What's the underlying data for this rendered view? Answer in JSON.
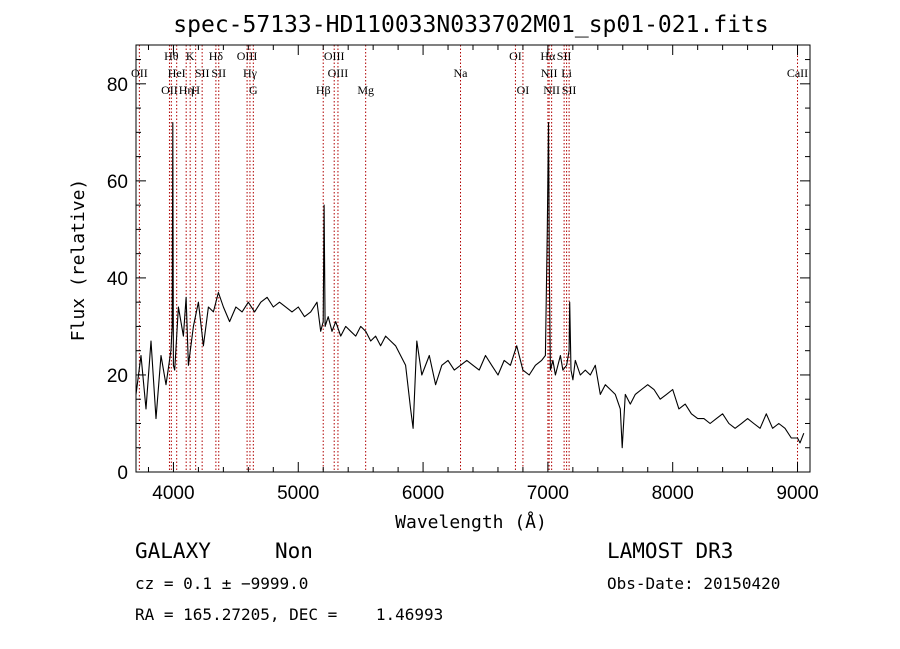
{
  "chart_data": {
    "type": "line",
    "title": "spec-57133-HD110033N033702M01_sp01-021.fits",
    "xlabel": "Wavelength (Å)",
    "ylabel": "Flux (relative)",
    "xlim": [
      3700,
      9100
    ],
    "ylim": [
      0,
      88
    ],
    "xticks": [
      4000,
      5000,
      6000,
      7000,
      8000,
      9000
    ],
    "yticks": [
      0,
      20,
      40,
      60,
      80
    ],
    "grid": false,
    "series": [
      {
        "x": [
          3700,
          3740,
          3780,
          3820,
          3860,
          3900,
          3940,
          3980,
          3990,
          3995,
          4000,
          4010,
          4040,
          4080,
          4101,
          4120,
          4160,
          4200,
          4240,
          4280,
          4320,
          4360,
          4400,
          4450,
          4500,
          4550,
          4600,
          4650,
          4700,
          4750,
          4800,
          4850,
          4900,
          4950,
          5000,
          5050,
          5100,
          5150,
          5180,
          5200,
          5207,
          5215,
          5240,
          5270,
          5300,
          5340,
          5380,
          5420,
          5460,
          5500,
          5540,
          5580,
          5620,
          5660,
          5700,
          5740,
          5780,
          5820,
          5860,
          5900,
          5920,
          5950,
          5990,
          6050,
          6100,
          6150,
          6200,
          6250,
          6300,
          6350,
          6400,
          6450,
          6500,
          6550,
          6600,
          6650,
          6700,
          6750,
          6800,
          6850,
          6900,
          6950,
          6980,
          6995,
          7005,
          7012,
          7020,
          7040,
          7060,
          7080,
          7100,
          7120,
          7150,
          7170,
          7175,
          7185,
          7200,
          7220,
          7260,
          7300,
          7340,
          7380,
          7420,
          7460,
          7500,
          7540,
          7580,
          7595,
          7620,
          7660,
          7700,
          7750,
          7800,
          7850,
          7900,
          7950,
          8000,
          8050,
          8100,
          8150,
          8200,
          8250,
          8300,
          8350,
          8400,
          8450,
          8500,
          8550,
          8600,
          8650,
          8700,
          8750,
          8800,
          8850,
          8900,
          8950,
          9000,
          9020,
          9050
        ],
        "y": [
          16,
          24,
          13,
          27,
          11,
          24,
          18,
          25,
          30,
          72,
          22,
          21,
          34,
          28,
          36,
          22,
          30,
          35,
          26,
          34,
          33,
          37,
          34,
          31,
          34,
          33,
          35,
          33,
          35,
          36,
          34,
          35,
          34,
          33,
          34,
          32,
          33,
          35,
          29,
          31,
          55,
          30,
          32,
          29,
          31,
          28,
          30,
          29,
          28,
          30,
          29,
          27,
          28,
          26,
          28,
          27,
          26,
          24,
          22,
          13,
          9,
          27,
          20,
          24,
          18,
          22,
          23,
          21,
          22,
          23,
          22,
          21,
          24,
          22,
          20,
          23,
          22,
          26,
          21,
          20,
          22,
          23,
          24,
          50,
          72,
          40,
          21,
          23,
          20,
          22,
          24,
          21,
          22,
          25,
          35,
          21,
          19,
          23,
          20,
          21,
          20,
          22,
          16,
          18,
          17,
          16,
          13,
          5,
          16,
          14,
          16,
          17,
          18,
          17,
          15,
          16,
          17,
          13,
          14,
          12,
          11,
          11,
          10,
          11,
          12,
          10,
          9,
          10,
          11,
          10,
          9,
          12,
          9,
          10,
          9,
          7,
          7,
          6,
          8
        ]
      }
    ],
    "line_markers": [
      {
        "x": 3727,
        "label": "OII",
        "row": 1
      },
      {
        "x": 3968,
        "label": "OII",
        "row": 2
      },
      {
        "x": 3983,
        "label": "Hθ",
        "row": 0
      },
      {
        "x": 4102,
        "label": "Hη",
        "row": 2
      },
      {
        "x": 4026,
        "label": "HeI",
        "row": 1
      },
      {
        "x": 4134,
        "label": "K",
        "row": 0
      },
      {
        "x": 4178,
        "label": "H",
        "row": 2
      },
      {
        "x": 4230,
        "label": "SII",
        "row": 1
      },
      {
        "x": 4340,
        "label": "Hδ",
        "row": 0
      },
      {
        "x": 4363,
        "label": "SII",
        "row": 1
      },
      {
        "x": 4590,
        "label": "OIII",
        "row": 0
      },
      {
        "x": 4613,
        "label": "Hγ",
        "row": 1
      },
      {
        "x": 4640,
        "label": "G",
        "row": 2
      },
      {
        "x": 5200,
        "label": "Hβ",
        "row": 2
      },
      {
        "x": 5288,
        "label": "OIII",
        "row": 0
      },
      {
        "x": 5318,
        "label": "OIII",
        "row": 1
      },
      {
        "x": 5540,
        "label": "Mg",
        "row": 2
      },
      {
        "x": 6300,
        "label": "Na",
        "row": 1
      },
      {
        "x": 6740,
        "label": "OI",
        "row": 0
      },
      {
        "x": 6800,
        "label": "OI",
        "row": 2
      },
      {
        "x": 7000,
        "label": "Hα",
        "row": 0
      },
      {
        "x": 7010,
        "label": "NII",
        "row": 1
      },
      {
        "x": 7030,
        "label": "NII",
        "row": 2
      },
      {
        "x": 7130,
        "label": "SII",
        "row": 0
      },
      {
        "x": 7150,
        "label": "Li",
        "row": 1
      },
      {
        "x": 7170,
        "label": "SII",
        "row": 2
      },
      {
        "x": 9000,
        "label": "CaII",
        "row": 1
      }
    ]
  },
  "info": {
    "class_label": "GALAXY",
    "subclass": "Non",
    "survey": "LAMOST DR3",
    "cz": "cz = 0.1 ± −9999.0",
    "obs_date": "Obs-Date: 20150420",
    "radec": "RA = 165.27205, DEC =    1.46993"
  },
  "colors": {
    "spectrum": "#000000",
    "marker": "#b00000",
    "axes": "#000000"
  }
}
